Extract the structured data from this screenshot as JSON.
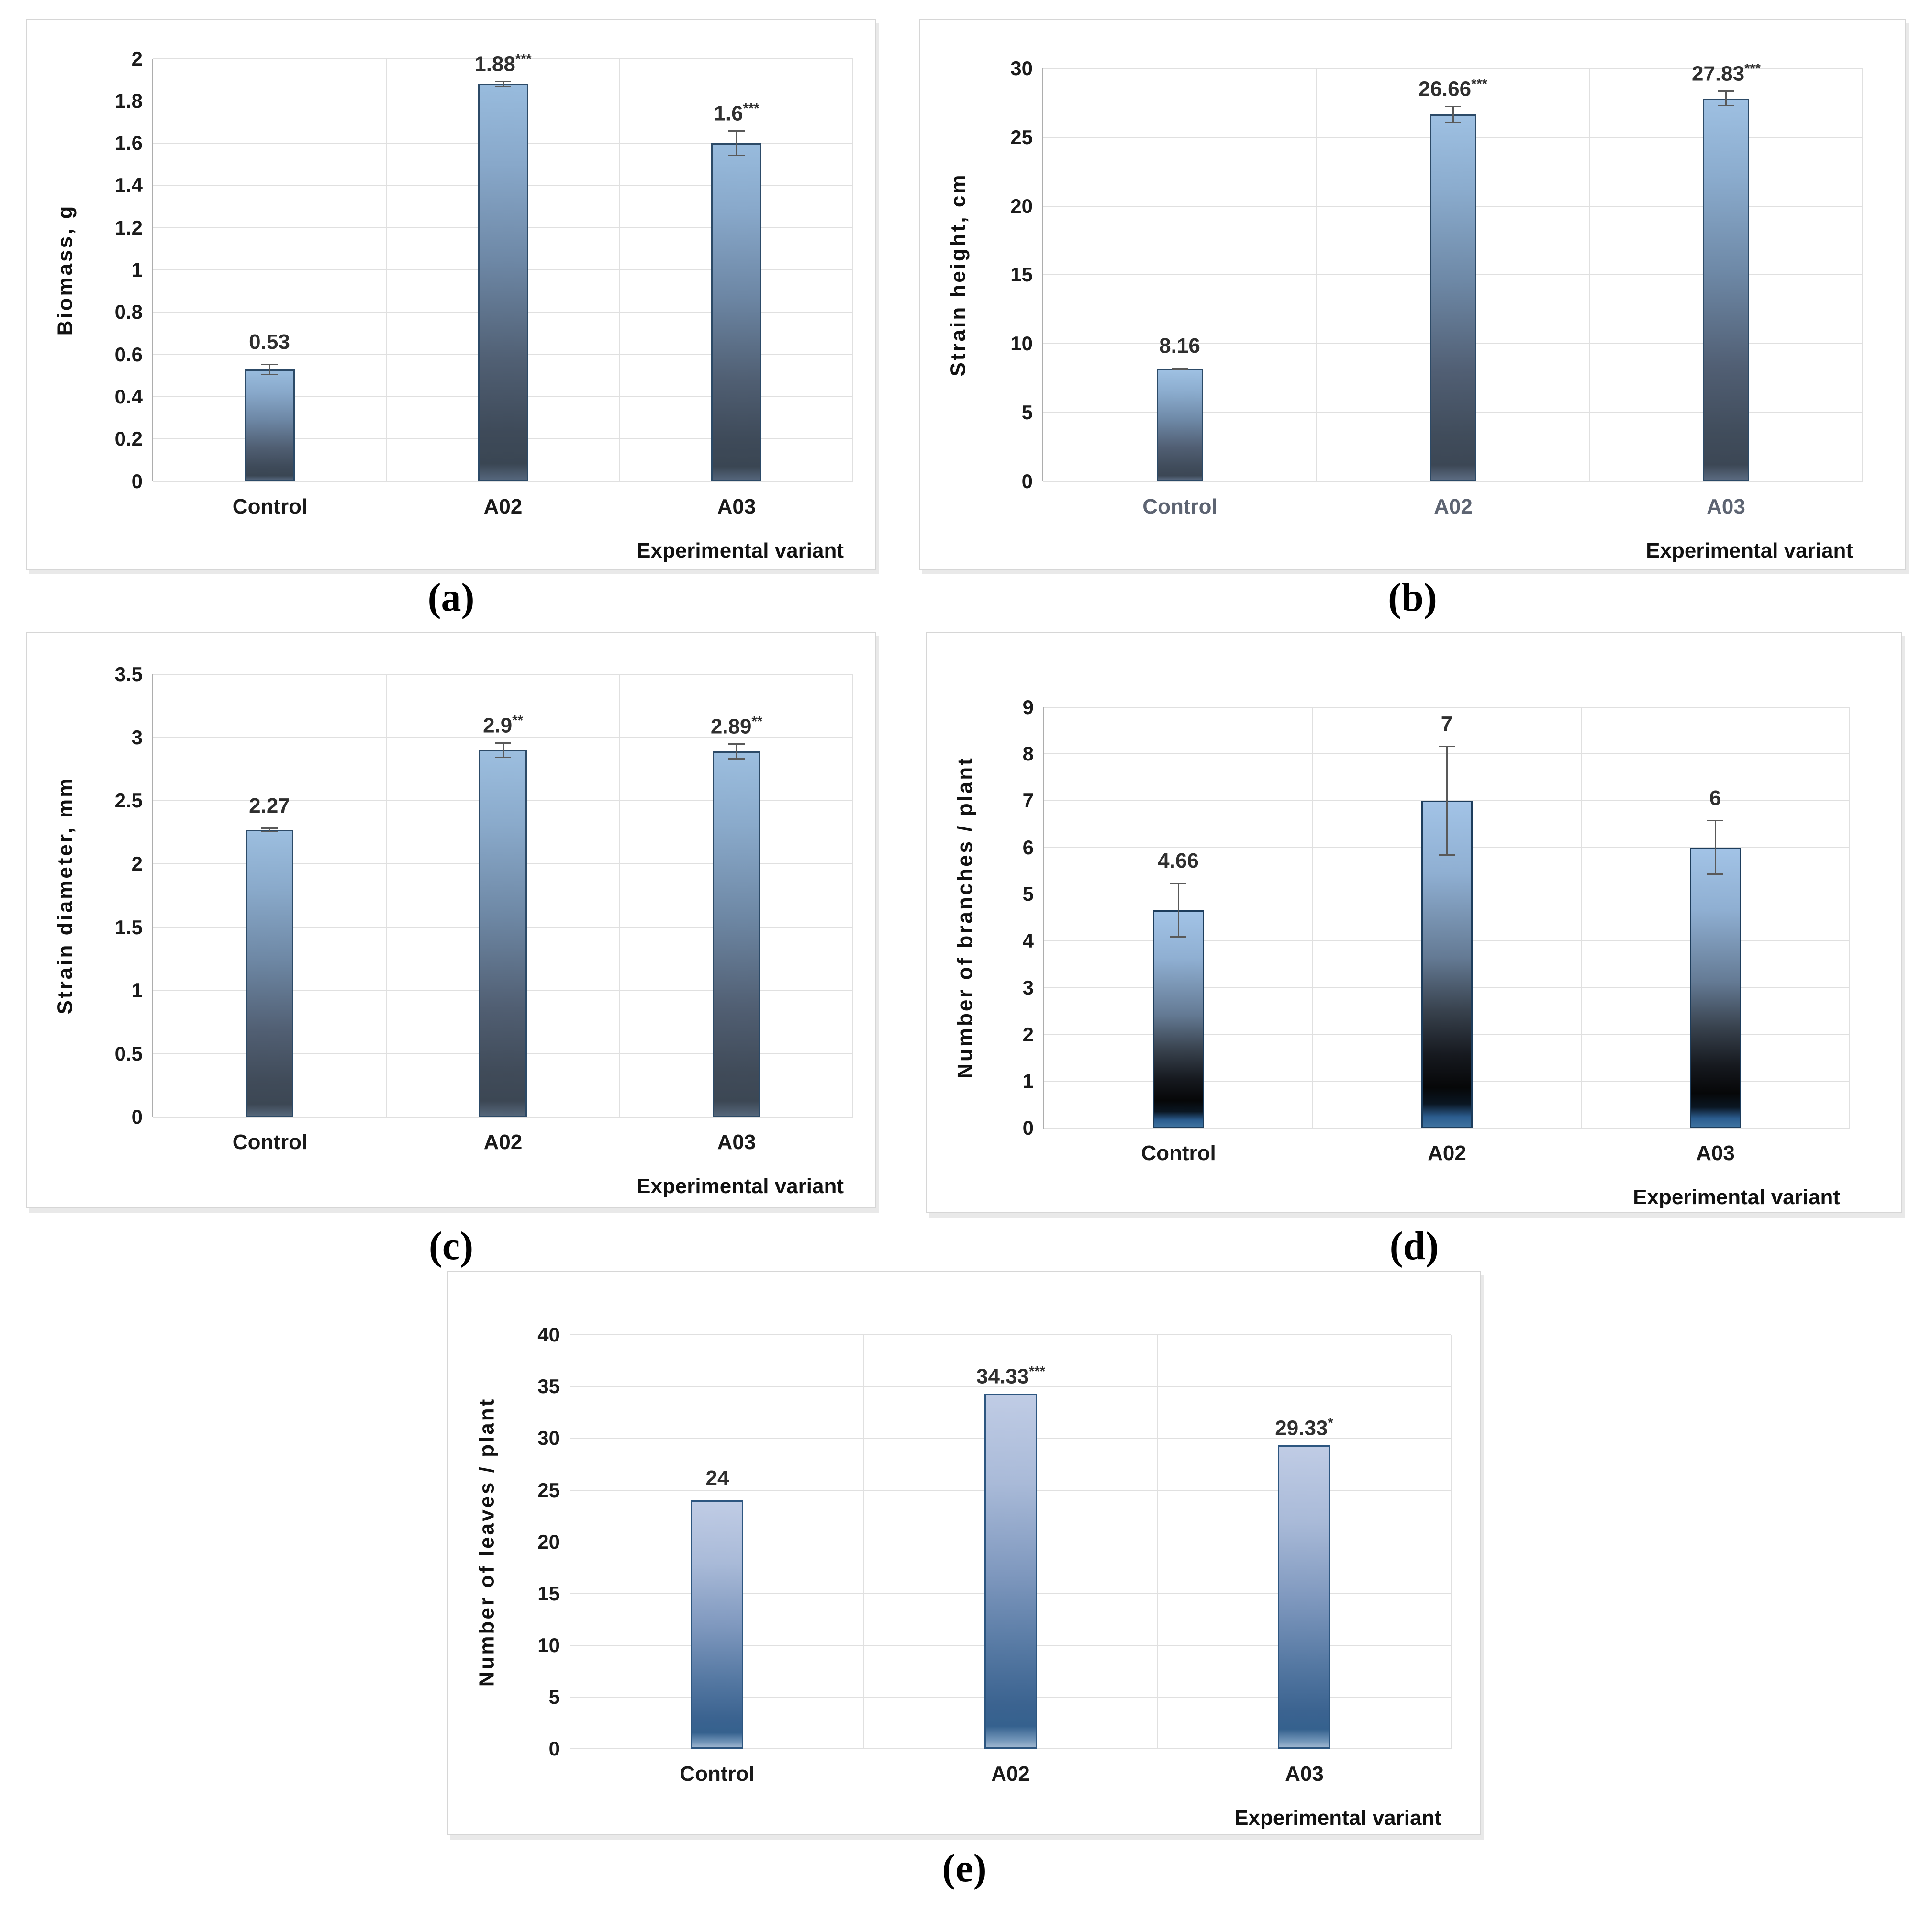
{
  "figure": {
    "x_axis_title": "Experimental variant",
    "categories": [
      "Control",
      "A02",
      "A03"
    ]
  },
  "chart_data": [
    {
      "id": "a",
      "type": "bar",
      "caption": "(a)",
      "y_title": "Biomass, g",
      "x_title": "Experimental variant",
      "categories": [
        "Control",
        "A02",
        "A03"
      ],
      "values": [
        0.53,
        1.88,
        1.6
      ],
      "errors": [
        0.025,
        0.012,
        0.06
      ],
      "labels": [
        {
          "text": "0.53",
          "stars": ""
        },
        {
          "text": "1.88",
          "stars": "***"
        },
        {
          "text": "1.6",
          "stars": "***"
        }
      ],
      "y_ticks": [
        "2",
        "1.8",
        "1.6",
        "1.4",
        "1.2",
        "1",
        "0.8",
        "0.6",
        "0.4",
        "0.2",
        "0"
      ],
      "ylim": [
        0,
        2
      ],
      "grid": true,
      "colors": {
        "bar_gradient": [
          "#98bbdd 0%",
          "#88a8ca 20%",
          "#6d87a5 45%",
          "#505f73 70%",
          "#3e4a59 88%",
          "#3a4653 96%",
          "#54657b 100%"
        ],
        "bar_border": "#2c4a67",
        "category_labels": "#1a1a1a"
      }
    },
    {
      "id": "b",
      "type": "bar",
      "caption": "(b)",
      "y_title": "Strain height, cm",
      "x_title": "Experimental variant",
      "categories": [
        "Control",
        "A02",
        "A03"
      ],
      "values": [
        8.16,
        26.66,
        27.83
      ],
      "errors": [
        0.08,
        0.6,
        0.55
      ],
      "labels": [
        {
          "text": "8.16",
          "stars": ""
        },
        {
          "text": "26.66",
          "stars": "***"
        },
        {
          "text": "27.83",
          "stars": "***"
        }
      ],
      "y_ticks": [
        "30",
        "25",
        "20",
        "15",
        "10",
        "5",
        "0"
      ],
      "ylim": [
        0,
        30
      ],
      "grid": true,
      "colors": {
        "bar_gradient": [
          "#9ec0e2 0%",
          "#8bacce 20%",
          "#6e89a7 45%",
          "#515f74 70%",
          "#404c5b 88%",
          "#3c4755 96%",
          "#5a6a80 100%"
        ],
        "bar_border": "#2c4a67",
        "category_labels": "#5d6472"
      }
    },
    {
      "id": "c",
      "type": "bar",
      "caption": "(c)",
      "y_title": "Strain diameter, mm",
      "x_title": "Experimental variant",
      "categories": [
        "Control",
        "A02",
        "A03"
      ],
      "values": [
        2.27,
        2.9,
        2.89
      ],
      "errors": [
        0.015,
        0.06,
        0.06
      ],
      "labels": [
        {
          "text": "2.27",
          "stars": ""
        },
        {
          "text": "2.9",
          "stars": "**"
        },
        {
          "text": "2.89",
          "stars": "**"
        }
      ],
      "y_ticks": [
        "3.5",
        "3",
        "2.5",
        "2",
        "1.5",
        "1",
        "0.5",
        "0"
      ],
      "ylim": [
        0,
        3.5
      ],
      "grid": true,
      "colors": {
        "bar_gradient": [
          "#9cbedf 0%",
          "#8aaacb 20%",
          "#6e88a5 45%",
          "#515f73 70%",
          "#404b59 88%",
          "#3c4754 96%",
          "#556679 100%"
        ],
        "bar_border": "#2c4a67",
        "category_labels": "#1a1a1a"
      }
    },
    {
      "id": "d",
      "type": "bar",
      "caption": "(d)",
      "y_title": "Number of branches / plant",
      "x_title": "Experimental variant",
      "categories": [
        "Control",
        "A02",
        "A03"
      ],
      "values": [
        4.66,
        7,
        6
      ],
      "errors": [
        0.58,
        1.17,
        0.58
      ],
      "labels": [
        {
          "text": "4.66",
          "stars": ""
        },
        {
          "text": "7",
          "stars": ""
        },
        {
          "text": "6",
          "stars": ""
        }
      ],
      "y_ticks": [
        "9",
        "8",
        "7",
        "6",
        "5",
        "4",
        "3",
        "2",
        "1",
        "0"
      ],
      "ylim": [
        0,
        9
      ],
      "grid": true,
      "colors": {
        "bar_gradient": [
          "#a2c3e6 0%",
          "#8fafd2 22%",
          "#647a94 48%",
          "#39434f 64%",
          "#16191f 78%",
          "#060708 88%",
          "#0a1622 93%",
          "#2b5c8e 97%",
          "#3e729f 100%"
        ],
        "bar_border": "#1d3d5c",
        "category_labels": "#1a1a1a"
      }
    },
    {
      "id": "e",
      "type": "bar",
      "caption": "(e)",
      "y_title": "Number of leaves / plant",
      "x_title": "Experimental variant",
      "categories": [
        "Control",
        "A02",
        "A03"
      ],
      "values": [
        24,
        34.33,
        29.33
      ],
      "errors": [
        0,
        0,
        0
      ],
      "labels": [
        {
          "text": "24",
          "stars": ""
        },
        {
          "text": "34.33",
          "stars": "***"
        },
        {
          "text": "29.33",
          "stars": "*"
        }
      ],
      "y_ticks": [
        "40",
        "35",
        "30",
        "25",
        "20",
        "15",
        "10",
        "5",
        "0"
      ],
      "ylim": [
        0,
        40
      ],
      "grid": true,
      "colors": {
        "bar_gradient": [
          "#c0cce5 0%",
          "#a9bad8 25%",
          "#8099bf 50%",
          "#5679a3 72%",
          "#3b6390 88%",
          "#35618e 94%",
          "#7396b9 98%",
          "#9fb6cf 100%"
        ],
        "bar_border": "#2d5680",
        "category_labels": "#1a1a1a"
      }
    }
  ],
  "style": {
    "gridline": "#e0e0e0",
    "axis_line": "#adadad",
    "error_bar": "#595959",
    "tick_text": "#1b1b1b"
  }
}
